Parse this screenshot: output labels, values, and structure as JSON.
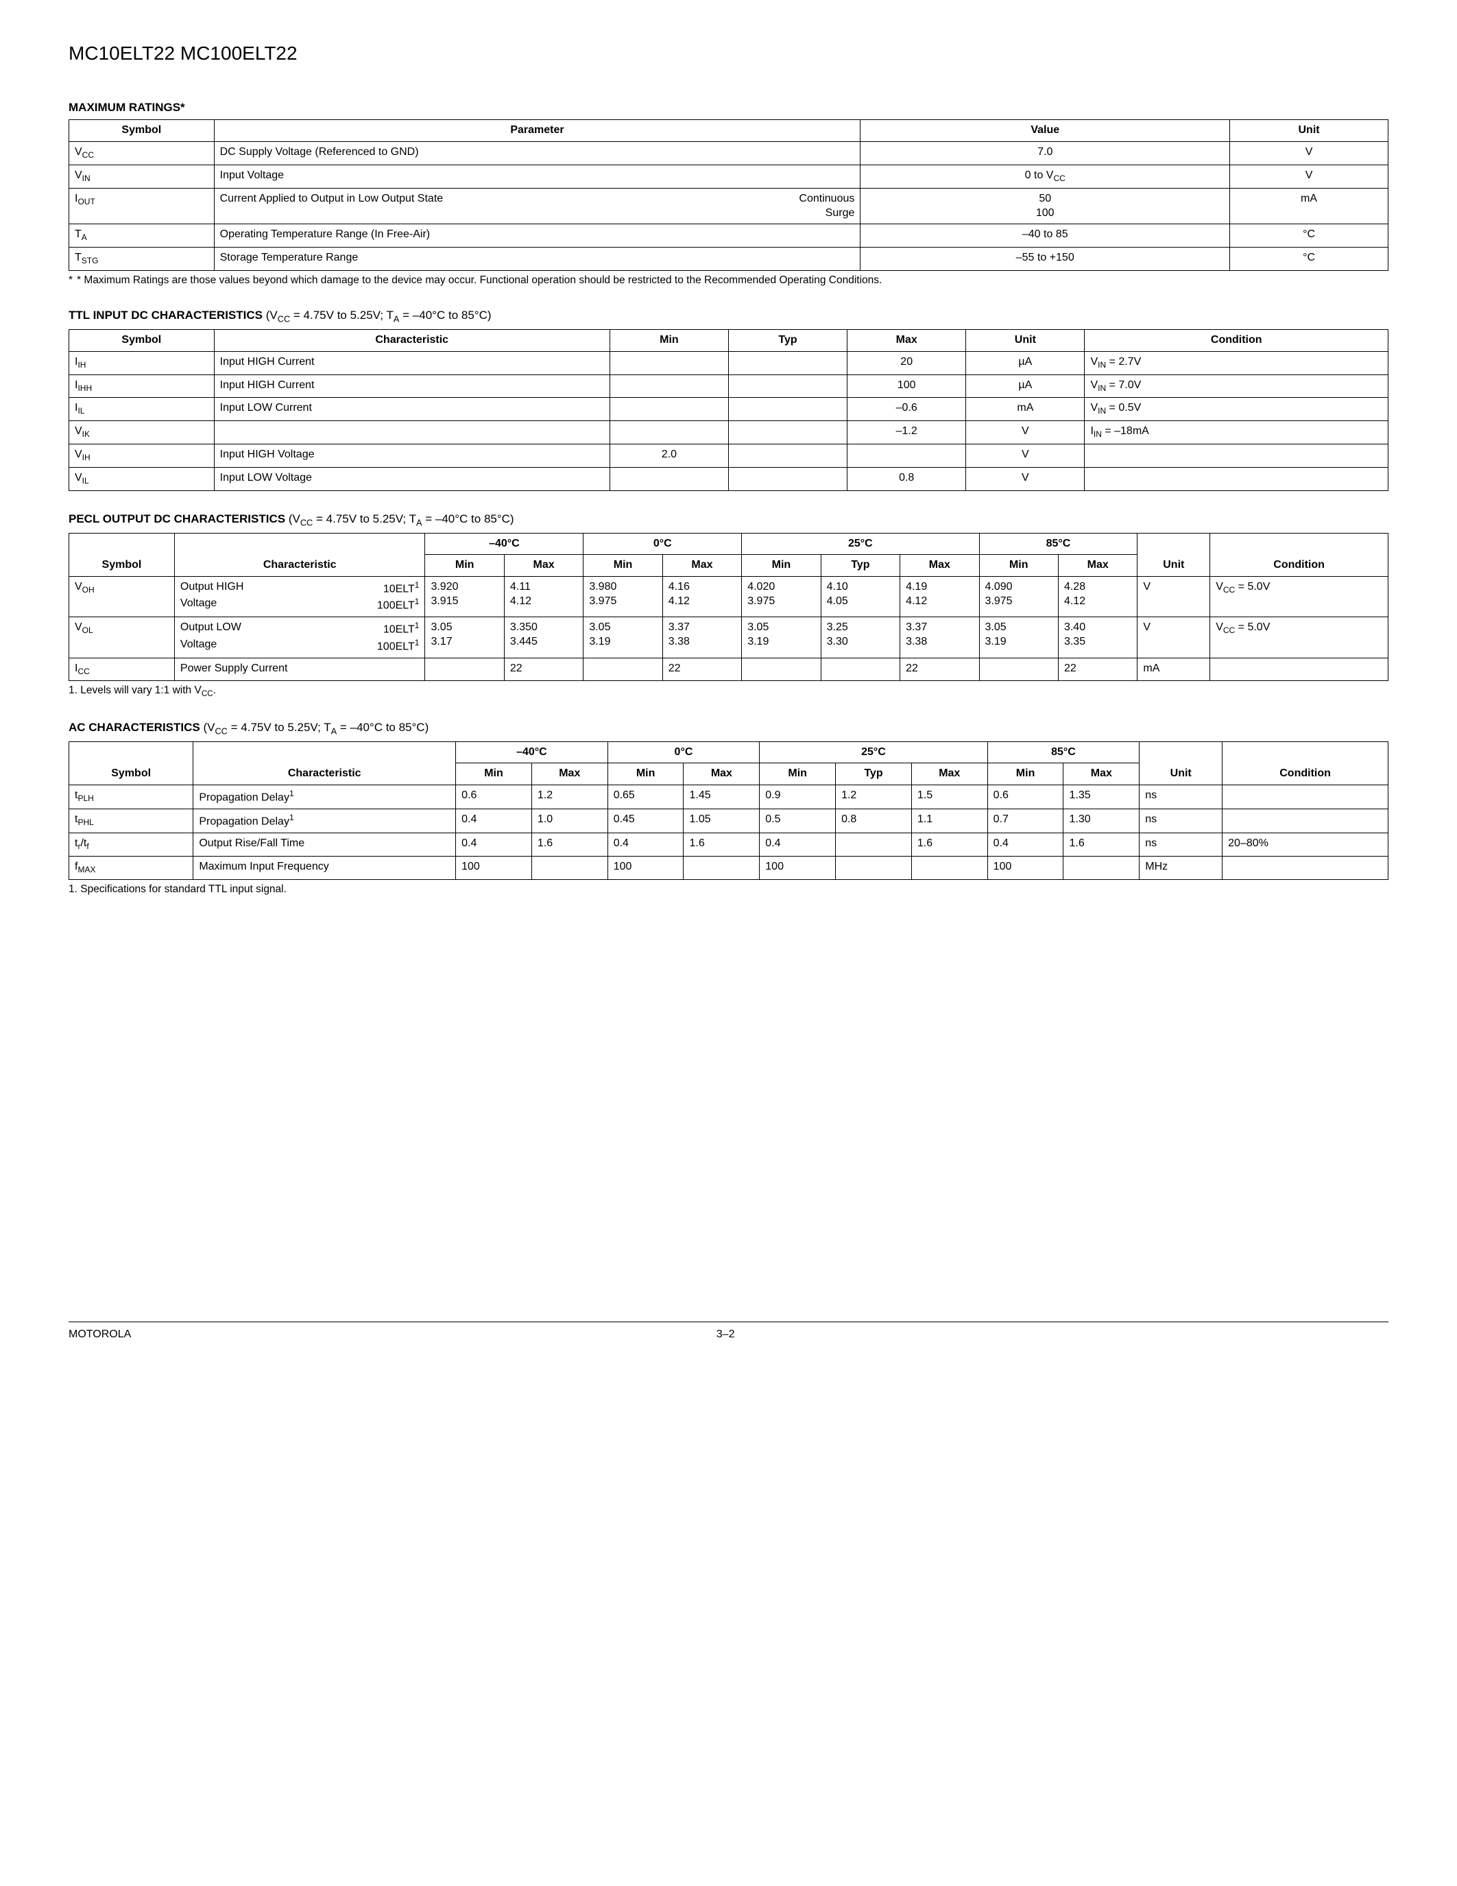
{
  "page_title": "MC10ELT22 MC100ELT22",
  "maxratings": {
    "title": "MAXIMUM RATINGS*",
    "headers": {
      "symbol": "Symbol",
      "parameter": "Parameter",
      "value": "Value",
      "unit": "Unit"
    },
    "rows": [
      {
        "sym_pre": "V",
        "sym_sub": "CC",
        "param": "DC Supply Voltage (Referenced to GND)",
        "param_right": "",
        "value": "7.0",
        "unit": "V"
      },
      {
        "sym_pre": "V",
        "sym_sub": "IN",
        "param": "Input Voltage",
        "param_right": "",
        "value_pre": "0 to V",
        "value_sub": "CC",
        "unit": "V"
      },
      {
        "sym_pre": "I",
        "sym_sub": "OUT",
        "param": "Current Applied to Output in Low Output State",
        "param_right": "Continuous\nSurge",
        "value": "50\n100",
        "unit": "mA"
      },
      {
        "sym_pre": "T",
        "sym_sub": "A",
        "param": "Operating Temperature Range (In Free-Air)",
        "param_right": "",
        "value": "–40 to 85",
        "unit": "°C"
      },
      {
        "sym_pre": "T",
        "sym_sub": "STG",
        "param": "Storage Temperature Range",
        "param_right": "",
        "value": "–55 to +150",
        "unit": "°C"
      }
    ],
    "footnote": "* Maximum Ratings are those values beyond which damage to the device may occur.  Functional operation should be restricted to the Recommended Operating Conditions."
  },
  "ttl": {
    "title": "TTL INPUT DC CHARACTERISTICS",
    "cond_pre": " (V",
    "cond_sub1": "CC",
    "cond_mid": " = 4.75V to 5.25V; T",
    "cond_sub2": "A",
    "cond_post": " = –40°C to 85°C)",
    "headers": {
      "symbol": "Symbol",
      "char": "Characteristic",
      "min": "Min",
      "typ": "Typ",
      "max": "Max",
      "unit": "Unit",
      "condition": "Condition"
    },
    "rows": [
      {
        "sym_pre": "I",
        "sym_sub": "IH",
        "char": "Input HIGH Current",
        "min": "",
        "typ": "",
        "max": "20",
        "unit": "µA",
        "cond_pre": "V",
        "cond_sub": "IN",
        "cond_post": " = 2.7V"
      },
      {
        "sym_pre": "I",
        "sym_sub": "IHH",
        "char": "Input HIGH Current",
        "min": "",
        "typ": "",
        "max": "100",
        "unit": "µA",
        "cond_pre": "V",
        "cond_sub": "IN",
        "cond_post": " = 7.0V"
      },
      {
        "sym_pre": "I",
        "sym_sub": "IL",
        "char": "Input LOW Current",
        "min": "",
        "typ": "",
        "max": "–0.6",
        "unit": "mA",
        "cond_pre": "V",
        "cond_sub": "IN",
        "cond_post": " = 0.5V"
      },
      {
        "sym_pre": "V",
        "sym_sub": "IK",
        "char": "",
        "min": "",
        "typ": "",
        "max": "–1.2",
        "unit": "V",
        "cond_pre": "I",
        "cond_sub": "IN",
        "cond_post": " = –18mA"
      },
      {
        "sym_pre": "V",
        "sym_sub": "IH",
        "char": "Input HIGH Voltage",
        "min": "2.0",
        "typ": "",
        "max": "",
        "unit": "V",
        "cond_pre": "",
        "cond_sub": "",
        "cond_post": ""
      },
      {
        "sym_pre": "V",
        "sym_sub": "IL",
        "char": "Input LOW Voltage",
        "min": "",
        "typ": "",
        "max": "0.8",
        "unit": "V",
        "cond_pre": "",
        "cond_sub": "",
        "cond_post": ""
      }
    ]
  },
  "pecl": {
    "title": "PECL OUTPUT DC CHARACTERISTICS",
    "cond_pre": " (V",
    "cond_sub1": "CC",
    "cond_mid": " = 4.75V to 5.25V; T",
    "cond_sub2": "A",
    "cond_post": " = –40°C to 85°C)",
    "temps": [
      "–40°C",
      "0°C",
      "25°C",
      "85°C"
    ],
    "subheaders": {
      "symbol": "Symbol",
      "char": "Characteristic",
      "min": "Min",
      "max": "Max",
      "typ": "Typ",
      "unit": "Unit",
      "condition": "Condition"
    },
    "rows": [
      {
        "sym_pre": "V",
        "sym_sub": "OH",
        "char_l1a": "Output HIGH",
        "char_l1b": "10ELT",
        "char_l2a": "Voltage",
        "char_l2b": "100ELT",
        "n40min": "3.920\n3.915",
        "n40max": "4.11\n4.12",
        "z0min": "3.980\n3.975",
        "z0max": "4.16\n4.12",
        "p25min": "4.020\n3.975",
        "p25typ": "4.10\n4.05",
        "p25max": "4.19\n4.12",
        "p85min": "4.090\n3.975",
        "p85max": "4.28\n4.12",
        "unit": "V",
        "cond_pre": "V",
        "cond_sub": "CC",
        "cond_post": " = 5.0V"
      },
      {
        "sym_pre": "V",
        "sym_sub": "OL",
        "char_l1a": "Output LOW",
        "char_l1b": "10ELT",
        "char_l2a": "Voltage",
        "char_l2b": "100ELT",
        "n40min": "3.05\n3.17",
        "n40max": "3.350\n3.445",
        "z0min": "3.05\n3.19",
        "z0max": "3.37\n3.38",
        "p25min": "3.05\n3.19",
        "p25typ": "3.25\n3.30",
        "p25max": "3.37\n3.38",
        "p85min": "3.05\n3.19",
        "p85max": "3.40\n3.35",
        "unit": "V",
        "cond_pre": "V",
        "cond_sub": "CC",
        "cond_post": " = 5.0V"
      },
      {
        "sym_pre": "I",
        "sym_sub": "CC",
        "char_l1a": "Power Supply Current",
        "char_l1b": "",
        "char_l2a": "",
        "char_l2b": "",
        "n40min": "",
        "n40max": "22",
        "z0min": "",
        "z0max": "22",
        "p25min": "",
        "p25typ": "",
        "p25max": "22",
        "p85min": "",
        "p85max": "22",
        "unit": "mA",
        "cond_pre": "",
        "cond_sub": "",
        "cond_post": ""
      }
    ],
    "footnote_pre": "1. Levels will vary 1:1 with V",
    "footnote_sub": "CC",
    "footnote_post": "."
  },
  "ac": {
    "title": "AC CHARACTERISTICS",
    "cond_pre": " (V",
    "cond_sub1": "CC",
    "cond_mid": " = 4.75V to 5.25V; T",
    "cond_sub2": "A",
    "cond_post": " = –40°C to 85°C)",
    "temps": [
      "–40°C",
      "0°C",
      "25°C",
      "85°C"
    ],
    "subheaders": {
      "symbol": "Symbol",
      "char": "Characteristic",
      "min": "Min",
      "max": "Max",
      "typ": "Typ",
      "unit": "Unit",
      "condition": "Condition"
    },
    "rows": [
      {
        "sym_pre": "t",
        "sym_sub": "PLH",
        "char": "Propagation Delay",
        "char_sup": "1",
        "n40min": "0.6",
        "n40max": "1.2",
        "z0min": "0.65",
        "z0max": "1.45",
        "p25min": "0.9",
        "p25typ": "1.2",
        "p25max": "1.5",
        "p85min": "0.6",
        "p85max": "1.35",
        "unit": "ns",
        "cond": ""
      },
      {
        "sym_pre": "t",
        "sym_sub": "PHL",
        "char": "Propagation Delay",
        "char_sup": "1",
        "n40min": "0.4",
        "n40max": "1.0",
        "z0min": "0.45",
        "z0max": "1.05",
        "p25min": "0.5",
        "p25typ": "0.8",
        "p25max": "1.1",
        "p85min": "0.7",
        "p85max": "1.30",
        "unit": "ns",
        "cond": ""
      },
      {
        "sym_pre": "t",
        "sym_sub": "r",
        "sym_mid": "/t",
        "sym_sub2": "f",
        "char": "Output Rise/Fall Time",
        "char_sup": "",
        "n40min": "0.4",
        "n40max": "1.6",
        "z0min": "0.4",
        "z0max": "1.6",
        "p25min": "0.4",
        "p25typ": "",
        "p25max": "1.6",
        "p85min": "0.4",
        "p85max": "1.6",
        "unit": "ns",
        "cond": "20–80%"
      },
      {
        "sym_pre": "f",
        "sym_sub": "MAX",
        "char": "Maximum Input Frequency",
        "char_sup": "",
        "n40min": "100",
        "n40max": "",
        "z0min": "100",
        "z0max": "",
        "p25min": "100",
        "p25typ": "",
        "p25max": "",
        "p85min": "100",
        "p85max": "",
        "unit": "MHz",
        "cond": ""
      }
    ],
    "footnote": "1. Specifications for standard TTL input signal."
  },
  "footer": {
    "left": "MOTOROLA",
    "center": "3–2"
  }
}
